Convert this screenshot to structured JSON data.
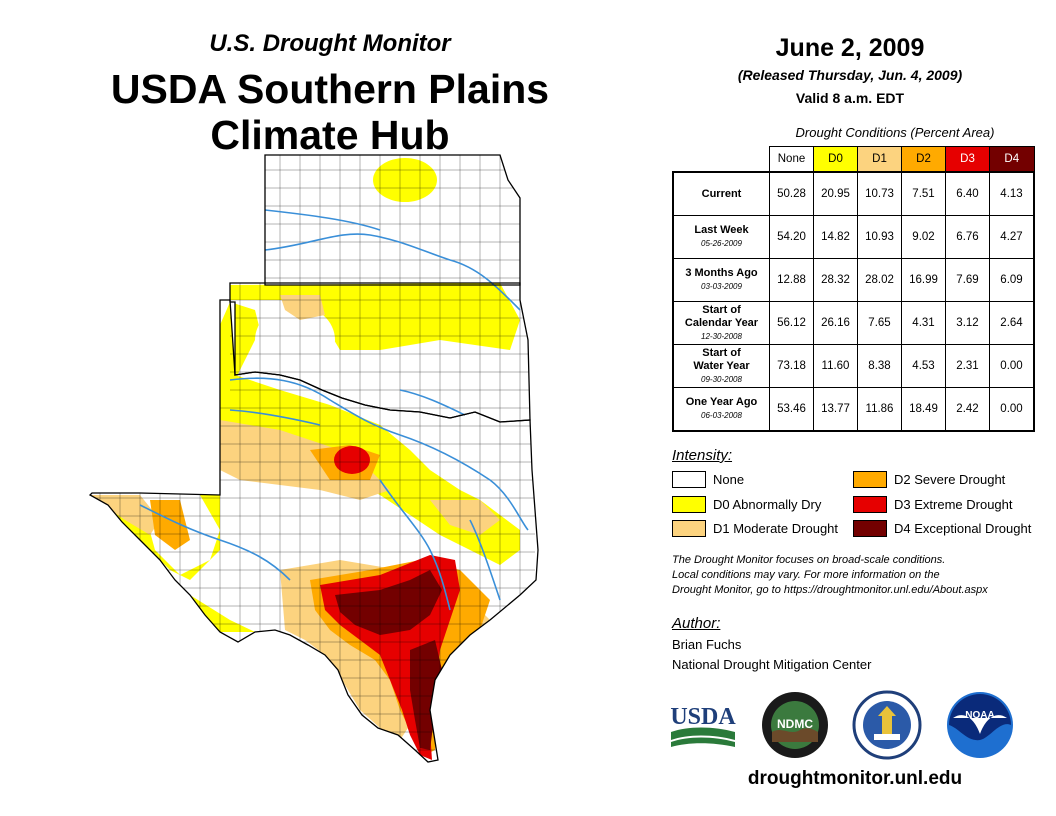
{
  "header": {
    "subtitle": "U.S. Drought Monitor",
    "title_line1": "USDA Southern Plains",
    "title_line2": "Climate Hub"
  },
  "date_block": {
    "date": "June 2, 2009",
    "released": "(Released Thursday, Jun. 4, 2009)",
    "valid": "Valid 8 a.m. EDT"
  },
  "table": {
    "caption": "Drought Conditions (Percent Area)",
    "columns": [
      {
        "label": "None",
        "color": "#ffffff",
        "text_color": "#000000"
      },
      {
        "label": "D0",
        "color": "#ffff00",
        "text_color": "#000000"
      },
      {
        "label": "D1",
        "color": "#fcd37f",
        "text_color": "#000000"
      },
      {
        "label": "D2",
        "color": "#ffaa00",
        "text_color": "#000000"
      },
      {
        "label": "D3",
        "color": "#e60000",
        "text_color": "#ffffff"
      },
      {
        "label": "D4",
        "color": "#730000",
        "text_color": "#ffffff"
      }
    ],
    "rows": [
      {
        "label": "Current",
        "label2": "",
        "date": "",
        "values": [
          "50.28",
          "20.95",
          "10.73",
          "7.51",
          "6.40",
          "4.13"
        ]
      },
      {
        "label": "Last Week",
        "label2": "",
        "date": "05-26-2009",
        "values": [
          "54.20",
          "14.82",
          "10.93",
          "9.02",
          "6.76",
          "4.27"
        ]
      },
      {
        "label": "3 Months Ago",
        "label2": "",
        "date": "03-03-2009",
        "values": [
          "12.88",
          "28.32",
          "28.02",
          "16.99",
          "7.69",
          "6.09"
        ]
      },
      {
        "label": "Start of",
        "label2": "Calendar Year",
        "date": "12-30-2008",
        "values": [
          "56.12",
          "26.16",
          "7.65",
          "4.31",
          "3.12",
          "2.64"
        ]
      },
      {
        "label": "Start of",
        "label2": "Water Year",
        "date": "09-30-2008",
        "values": [
          "73.18",
          "11.60",
          "8.38",
          "4.53",
          "2.31",
          "0.00"
        ]
      },
      {
        "label": "One Year Ago",
        "label2": "",
        "date": "06-03-2008",
        "values": [
          "53.46",
          "13.77",
          "11.86",
          "18.49",
          "2.42",
          "0.00"
        ]
      }
    ]
  },
  "legend": {
    "heading": "Intensity:",
    "items": [
      {
        "label": "None",
        "color": "#ffffff"
      },
      {
        "label": "D0 Abnormally Dry",
        "color": "#ffff00"
      },
      {
        "label": "D1 Moderate Drought",
        "color": "#fcd37f"
      },
      {
        "label": "D2 Severe Drought",
        "color": "#ffaa00"
      },
      {
        "label": "D3 Extreme Drought",
        "color": "#e60000"
      },
      {
        "label": "D4 Exceptional Drought",
        "color": "#730000"
      }
    ]
  },
  "note": {
    "line1": "The Drought Monitor focuses on broad-scale conditions.",
    "line2": "Local conditions may vary. For more information on the",
    "line3": "Drought Monitor, go to https://droughtmonitor.unl.edu/About.aspx"
  },
  "author": {
    "heading": "Author:",
    "name": "Brian Fuchs",
    "org": "National Drought Mitigation Center"
  },
  "logos": {
    "usda": "USDA",
    "ndmc": "NDMC",
    "noaa": "NOAA"
  },
  "footer": {
    "url": "droughtmonitor.unl.edu"
  },
  "map": {
    "regions": [
      "Kansas",
      "Oklahoma",
      "Texas"
    ],
    "colors": {
      "none": "#ffffff",
      "d0": "#ffff00",
      "d1": "#fcd37f",
      "d2": "#ffaa00",
      "d3": "#e60000",
      "d4": "#730000",
      "river": "#3a8fd8"
    }
  }
}
